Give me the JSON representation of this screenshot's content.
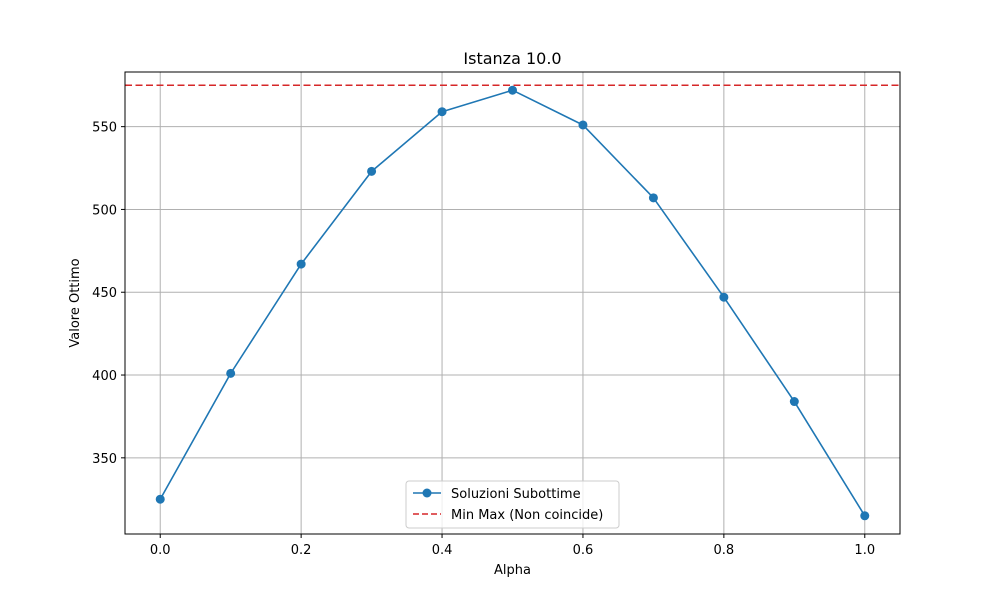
{
  "chart_data": {
    "type": "line",
    "title": "Istanza 10.0",
    "xlabel": "Alpha",
    "ylabel": "Valore Ottimo",
    "xlim": [
      -0.05,
      1.05
    ],
    "ylim": [
      304,
      583
    ],
    "xticks": [
      0.0,
      0.2,
      0.4,
      0.6,
      0.8,
      1.0
    ],
    "xtick_labels": [
      "0.0",
      "0.2",
      "0.4",
      "0.6",
      "0.8",
      "1.0"
    ],
    "yticks": [
      350,
      400,
      450,
      500,
      550
    ],
    "ytick_labels": [
      "350",
      "400",
      "450",
      "500",
      "550"
    ],
    "grid": true,
    "legend_position": "lower center",
    "x": [
      0.0,
      0.1,
      0.2,
      0.3,
      0.4,
      0.5,
      0.6,
      0.7,
      0.8,
      0.9,
      1.0
    ],
    "series": [
      {
        "name": "Soluzioni Subottime",
        "values": [
          325,
          401,
          467,
          523,
          559,
          572,
          551,
          507,
          447,
          384,
          315
        ],
        "color": "#1f77b4",
        "marker": "circle",
        "line_style": "solid"
      }
    ],
    "reference_lines": [
      {
        "name": "Min Max (Non coincide)",
        "orientation": "horizontal",
        "value": 575,
        "color": "#d62728",
        "line_style": "dashed"
      }
    ]
  }
}
